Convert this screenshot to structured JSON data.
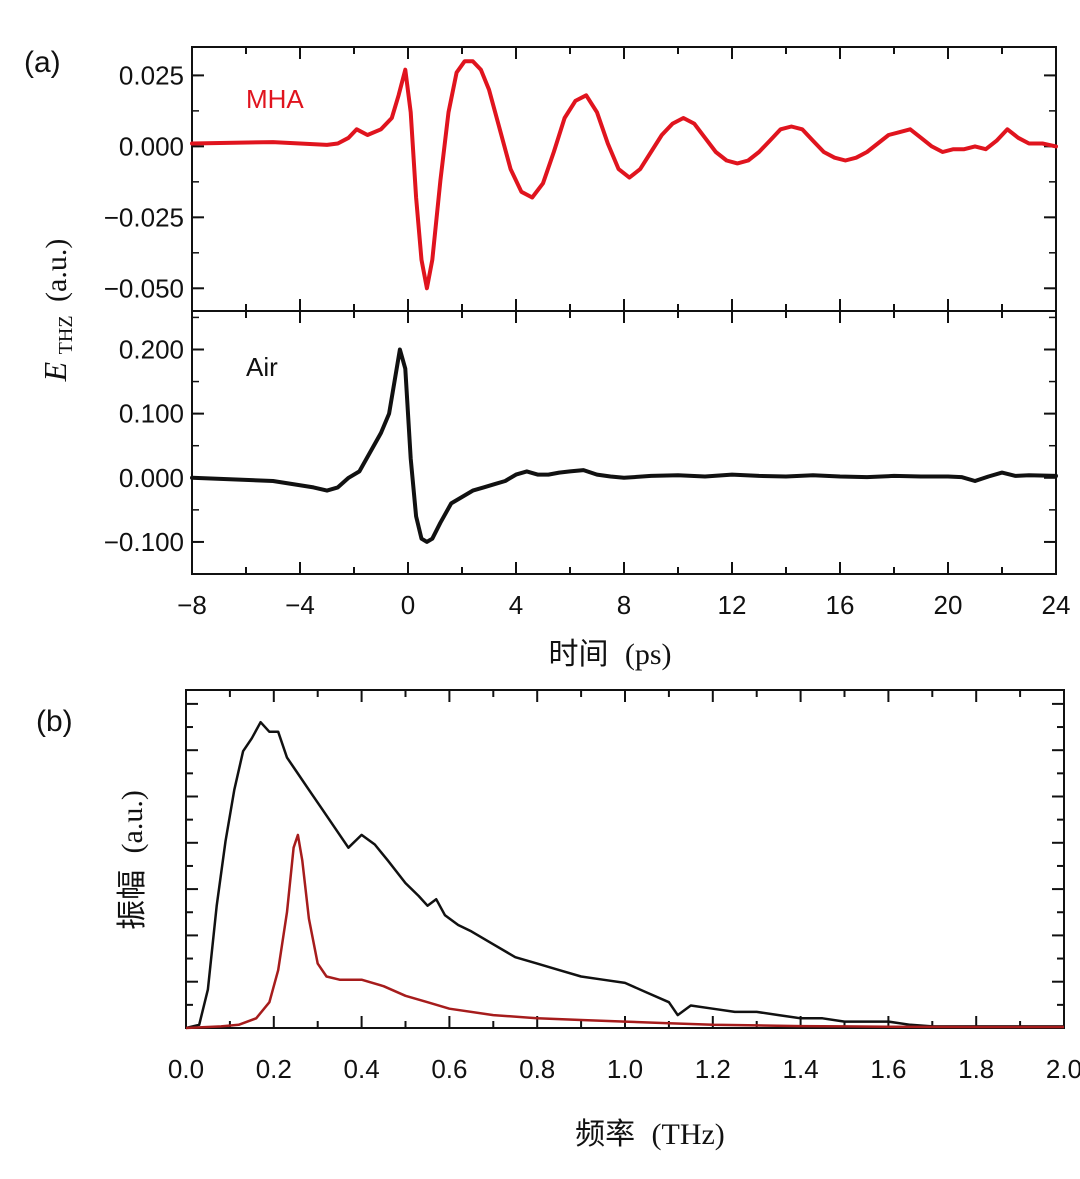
{
  "figure": {
    "panel_a_tag": "(a)",
    "panel_b_tag": "(b)"
  },
  "chart_data": [
    {
      "type": "line",
      "panel": "a-top",
      "series_label": "MHA",
      "color": "#e0141e",
      "xlim": [
        -8,
        24
      ],
      "ylim": [
        -0.058,
        0.035
      ],
      "yticks": [
        0.025,
        0.0,
        -0.025,
        -0.05
      ],
      "ytick_labels": [
        "0.025",
        "0.000",
        "−0.025",
        "−0.050"
      ],
      "x": [
        -8,
        -5,
        -3,
        -2.6,
        -2.2,
        -1.9,
        -1.5,
        -1.0,
        -0.6,
        -0.35,
        -0.1,
        0.1,
        0.3,
        0.5,
        0.7,
        0.9,
        1.2,
        1.5,
        1.8,
        2.1,
        2.4,
        2.7,
        3.0,
        3.4,
        3.8,
        4.2,
        4.6,
        5.0,
        5.4,
        5.8,
        6.2,
        6.6,
        7.0,
        7.4,
        7.8,
        8.2,
        8.6,
        9.0,
        9.4,
        9.8,
        10.2,
        10.6,
        11.0,
        11.4,
        11.8,
        12.2,
        12.6,
        13.0,
        13.4,
        13.8,
        14.2,
        14.6,
        15.0,
        15.4,
        15.8,
        16.2,
        16.6,
        17.0,
        17.4,
        17.8,
        18.2,
        18.6,
        19.0,
        19.4,
        19.8,
        20.2,
        20.6,
        21.0,
        21.4,
        21.8,
        22.2,
        22.6,
        23.0,
        23.5,
        24
      ],
      "values": [
        0.001,
        0.0015,
        0.0005,
        0.001,
        0.003,
        0.006,
        0.004,
        0.006,
        0.01,
        0.018,
        0.027,
        0.012,
        -0.018,
        -0.04,
        -0.05,
        -0.04,
        -0.012,
        0.012,
        0.026,
        0.03,
        0.03,
        0.027,
        0.02,
        0.006,
        -0.008,
        -0.016,
        -0.018,
        -0.013,
        -0.002,
        0.01,
        0.016,
        0.018,
        0.012,
        0.001,
        -0.008,
        -0.011,
        -0.008,
        -0.002,
        0.004,
        0.008,
        0.01,
        0.008,
        0.003,
        -0.002,
        -0.005,
        -0.006,
        -0.005,
        -0.002,
        0.002,
        0.006,
        0.007,
        0.006,
        0.002,
        -0.002,
        -0.004,
        -0.005,
        -0.004,
        -0.002,
        0.001,
        0.004,
        0.005,
        0.006,
        0.003,
        0.0,
        -0.002,
        -0.001,
        -0.001,
        0.0,
        -0.001,
        0.002,
        0.006,
        0.003,
        0.001,
        0.001,
        0.0
      ]
    },
    {
      "type": "line",
      "panel": "a-bottom",
      "series_label": "Air",
      "color": "#111111",
      "xlim": [
        -8,
        24
      ],
      "ylim": [
        -0.15,
        0.26
      ],
      "yticks": [
        0.2,
        0.1,
        0.0,
        -0.1
      ],
      "ytick_labels": [
        "0.200",
        "0.100",
        "0.000",
        "−0.100"
      ],
      "x": [
        -8,
        -5,
        -3.5,
        -3.0,
        -2.6,
        -2.2,
        -1.8,
        -1.4,
        -1.0,
        -0.7,
        -0.5,
        -0.3,
        -0.1,
        0.1,
        0.3,
        0.5,
        0.7,
        0.9,
        1.2,
        1.6,
        2.0,
        2.4,
        2.8,
        3.2,
        3.6,
        4.0,
        4.4,
        4.8,
        5.2,
        5.6,
        6.0,
        6.5,
        7.0,
        7.5,
        8.0,
        9,
        10,
        11,
        12,
        13,
        14,
        15,
        16,
        17,
        18,
        19,
        20,
        20.5,
        21,
        21.5,
        22,
        22.5,
        23,
        24
      ],
      "values": [
        0.0,
        -0.005,
        -0.015,
        -0.02,
        -0.015,
        0.0,
        0.01,
        0.04,
        0.07,
        0.1,
        0.15,
        0.2,
        0.17,
        0.03,
        -0.06,
        -0.095,
        -0.1,
        -0.095,
        -0.07,
        -0.04,
        -0.03,
        -0.02,
        -0.015,
        -0.01,
        -0.005,
        0.005,
        0.01,
        0.005,
        0.005,
        0.008,
        0.01,
        0.012,
        0.005,
        0.002,
        0.0,
        0.003,
        0.004,
        0.002,
        0.005,
        0.003,
        0.002,
        0.004,
        0.002,
        0.001,
        0.003,
        0.002,
        0.002,
        0.001,
        -0.005,
        0.002,
        0.008,
        0.003,
        0.004,
        0.003
      ]
    },
    {
      "shared_axes": true,
      "xticks": [
        -8,
        -4,
        0,
        4,
        8,
        12,
        16,
        20,
        24
      ],
      "xtick_labels": [
        "−8",
        "−4",
        "0",
        "4",
        "8",
        "12",
        "16",
        "20",
        "24"
      ],
      "xlabel_cn": "时间",
      "xlabel_unit": "(ps)",
      "ylabel_main": "E",
      "ylabel_sub": "THZ",
      "ylabel_unit": "(a.u.)"
    },
    {
      "type": "line",
      "panel": "b",
      "xlim": [
        0.0,
        2.0
      ],
      "ylim": [
        0,
        1.05
      ],
      "xticks": [
        0.0,
        0.2,
        0.4,
        0.6,
        0.8,
        1.0,
        1.2,
        1.4,
        1.6,
        1.8,
        2.0
      ],
      "xtick_labels": [
        "0.0",
        "0.2",
        "0.4",
        "0.6",
        "0.8",
        "1.0",
        "1.2",
        "1.4",
        "1.6",
        "1.8",
        "2.0"
      ],
      "xlabel_cn": "频率",
      "xlabel_unit": "(THz)",
      "ylabel_cn": "振幅",
      "ylabel_unit": "(a.u.)",
      "series": [
        {
          "name": "Air",
          "color": "#111111",
          "x": [
            0.0,
            0.03,
            0.05,
            0.07,
            0.09,
            0.11,
            0.13,
            0.15,
            0.17,
            0.19,
            0.21,
            0.23,
            0.25,
            0.28,
            0.31,
            0.34,
            0.37,
            0.4,
            0.43,
            0.46,
            0.5,
            0.53,
            0.55,
            0.57,
            0.59,
            0.62,
            0.65,
            0.7,
            0.75,
            0.8,
            0.85,
            0.9,
            0.95,
            1.0,
            1.05,
            1.1,
            1.12,
            1.15,
            1.2,
            1.25,
            1.3,
            1.35,
            1.4,
            1.45,
            1.5,
            1.55,
            1.6,
            1.65,
            1.7,
            1.8,
            1.9,
            2.0
          ],
          "values": [
            0.0,
            0.01,
            0.12,
            0.38,
            0.58,
            0.74,
            0.86,
            0.9,
            0.95,
            0.92,
            0.92,
            0.84,
            0.8,
            0.74,
            0.68,
            0.62,
            0.56,
            0.6,
            0.57,
            0.52,
            0.45,
            0.41,
            0.38,
            0.4,
            0.35,
            0.32,
            0.3,
            0.26,
            0.22,
            0.2,
            0.18,
            0.16,
            0.15,
            0.14,
            0.11,
            0.08,
            0.04,
            0.07,
            0.06,
            0.05,
            0.05,
            0.04,
            0.03,
            0.03,
            0.02,
            0.02,
            0.02,
            0.01,
            0.005,
            0.005,
            0.005,
            0.005
          ]
        },
        {
          "name": "MHA",
          "color": "#a61c1c",
          "x": [
            0.0,
            0.08,
            0.12,
            0.16,
            0.19,
            0.21,
            0.23,
            0.245,
            0.255,
            0.265,
            0.28,
            0.3,
            0.32,
            0.35,
            0.4,
            0.45,
            0.5,
            0.55,
            0.6,
            0.7,
            0.8,
            0.9,
            1.0,
            1.1,
            1.2,
            1.3,
            1.4,
            1.5,
            1.6,
            1.8,
            2.0
          ],
          "values": [
            0.0,
            0.005,
            0.01,
            0.03,
            0.08,
            0.18,
            0.36,
            0.56,
            0.6,
            0.52,
            0.34,
            0.2,
            0.16,
            0.15,
            0.15,
            0.13,
            0.1,
            0.08,
            0.06,
            0.04,
            0.03,
            0.025,
            0.02,
            0.015,
            0.01,
            0.008,
            0.006,
            0.005,
            0.004,
            0.003,
            0.003
          ]
        }
      ]
    }
  ]
}
